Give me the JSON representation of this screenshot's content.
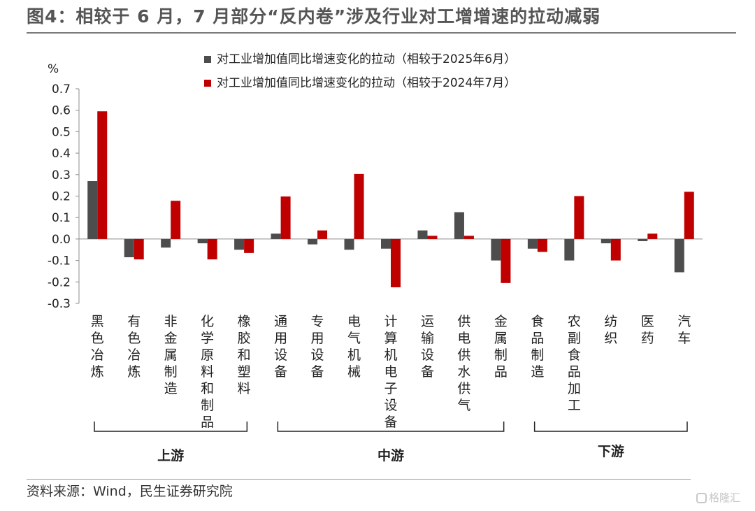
{
  "title": "图4：相较于 6 月，7 月部分“反内卷”涉及行业对工增增速的拉动减弱",
  "source": "资料来源：Wind，民生证券研究院",
  "watermark": "格隆汇",
  "colors": {
    "series1": "#4d4d4d",
    "series2": "#c00000",
    "axis": "#8c8c8c"
  },
  "chart_data": {
    "type": "bar",
    "unit_label": "%",
    "ylim": [
      -0.3,
      0.7
    ],
    "yticks": [
      "-0.3",
      "-0.2",
      "-0.1",
      "0.0",
      "0.1",
      "0.2",
      "0.3",
      "0.4",
      "0.5",
      "0.6",
      "0.7"
    ],
    "grid": false,
    "legend_position": "top-center",
    "categories": [
      "黑色冶炼",
      "有色冶炼",
      "非金属制造",
      "化学原料和制品",
      "橡胶和塑料",
      "通用设备",
      "专用设备",
      "电气机械",
      "计算机电子设备",
      "运输设备",
      "供电供水供气",
      "金属制品",
      "食品制造",
      "农副食品加工",
      "纺织",
      "医药",
      "汽车"
    ],
    "series": [
      {
        "name": "对工业增加值同比增速变化的拉动（相较于2025年6月）",
        "values": [
          0.27,
          -0.085,
          -0.04,
          -0.02,
          -0.05,
          0.025,
          -0.025,
          -0.05,
          -0.045,
          0.04,
          0.125,
          -0.1,
          -0.045,
          -0.1,
          -0.02,
          -0.01,
          -0.155
        ]
      },
      {
        "name": "对工业增加值同比增速变化的拉动（相较于2024年7月）",
        "values": [
          0.595,
          -0.095,
          0.178,
          -0.095,
          -0.065,
          0.198,
          0.04,
          0.303,
          -0.225,
          0.015,
          0.015,
          -0.205,
          -0.06,
          0.2,
          -0.1,
          0.025,
          0.22
        ]
      }
    ],
    "groups": [
      {
        "label": "上游",
        "start": 0,
        "end": 4
      },
      {
        "label": "中游",
        "start": 5,
        "end": 11
      },
      {
        "label": "下游",
        "start": 12,
        "end": 16
      }
    ]
  }
}
